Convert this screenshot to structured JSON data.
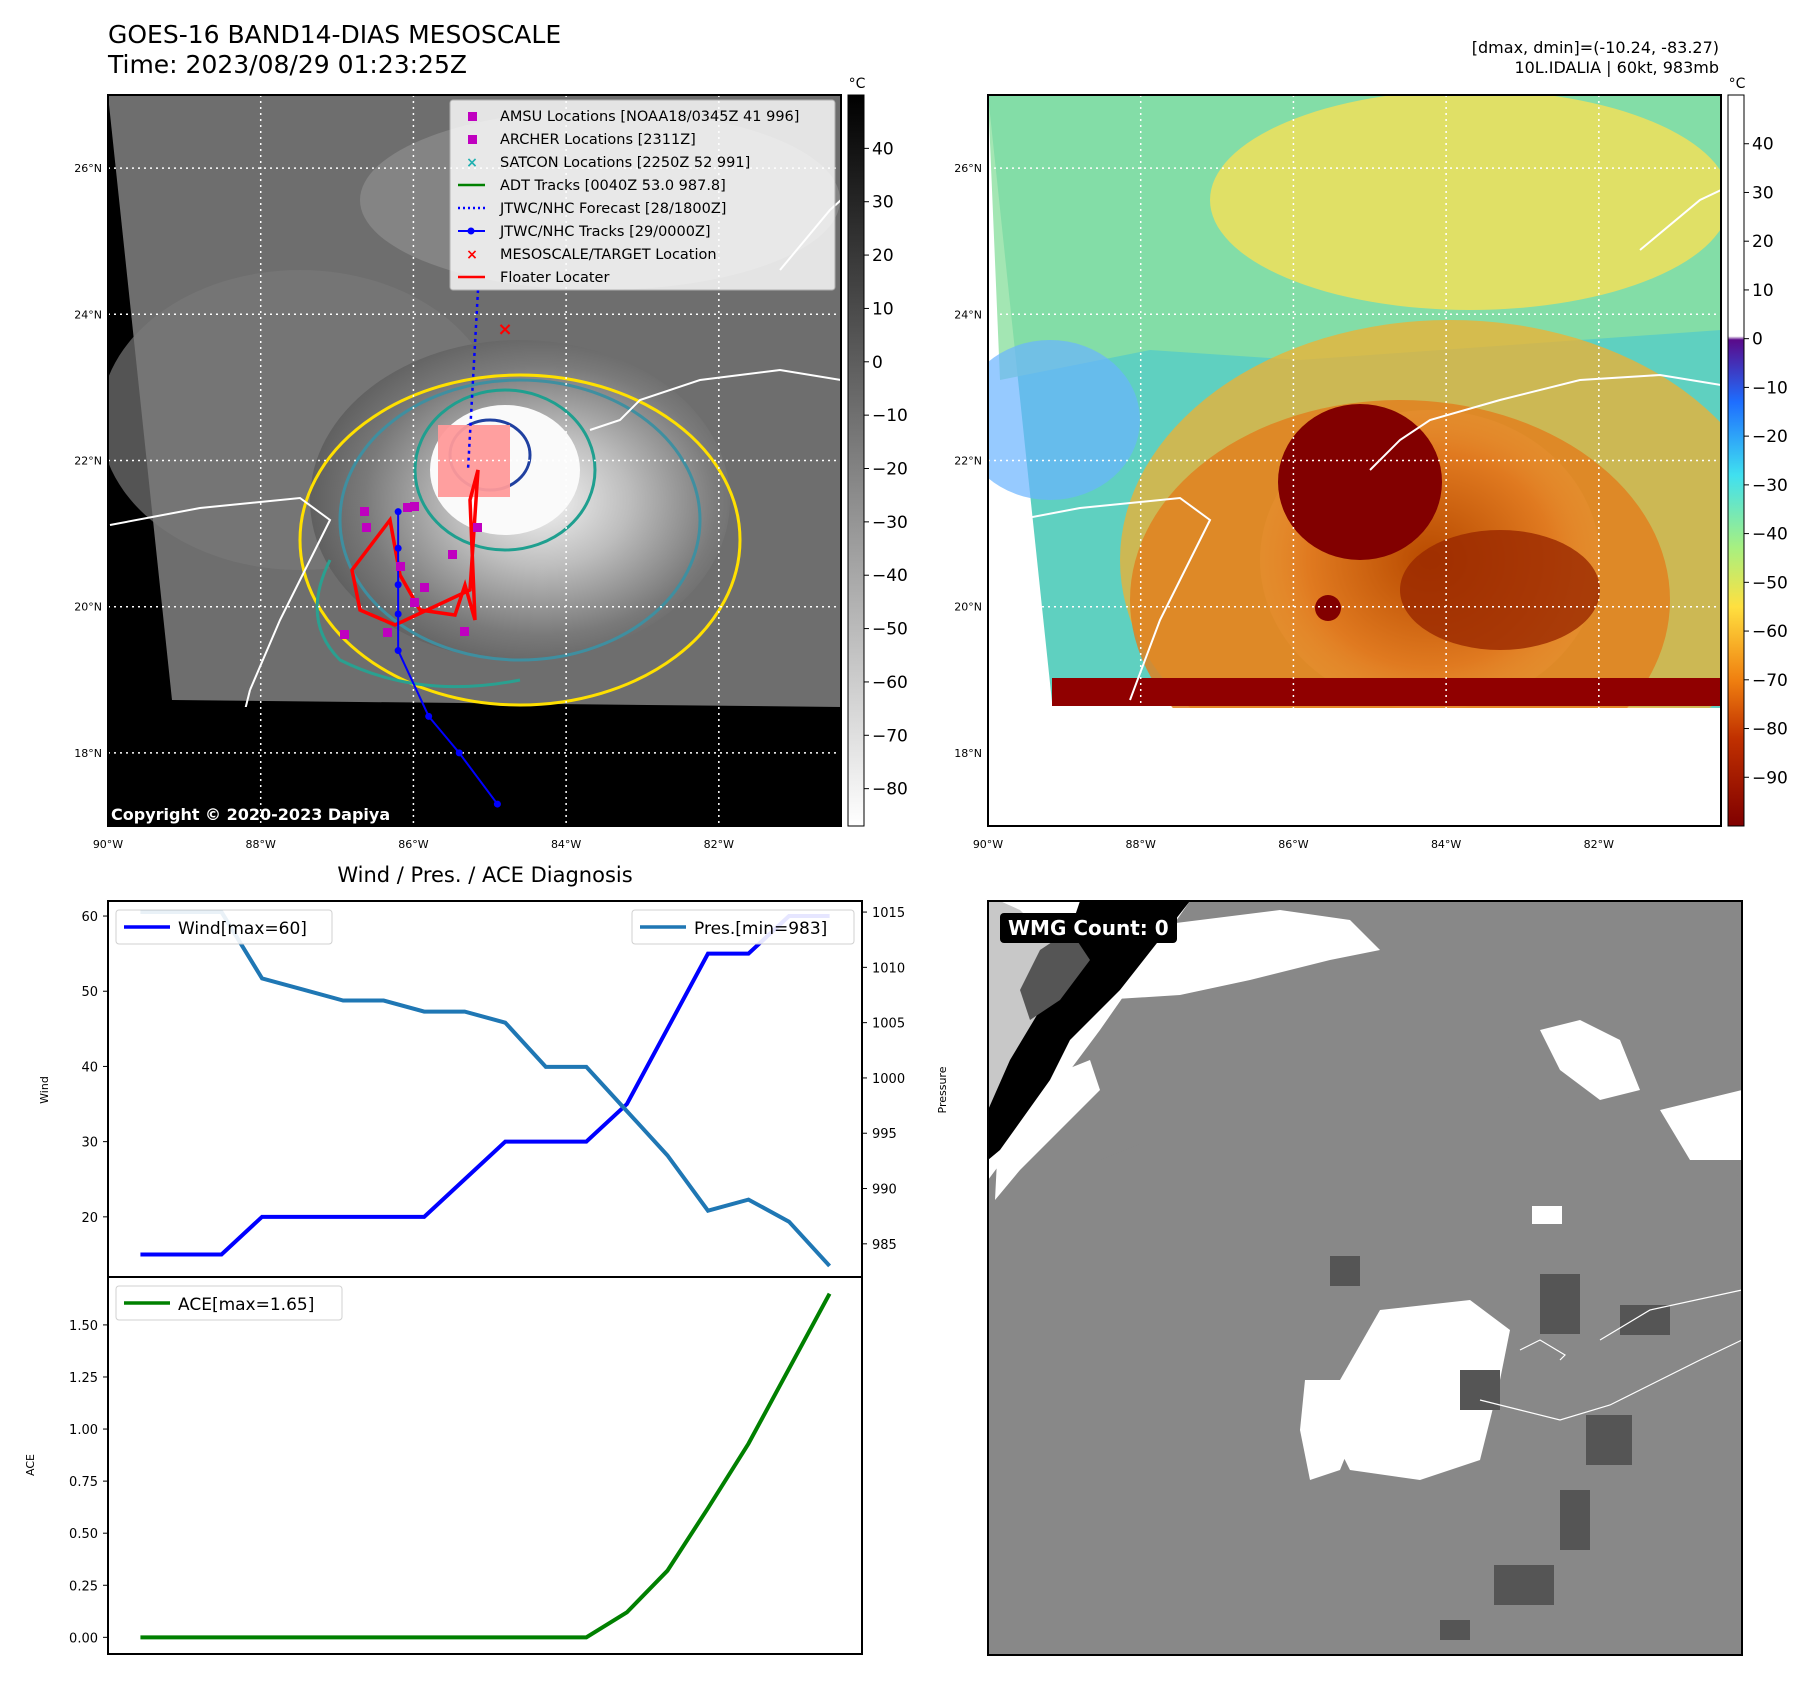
{
  "header": {
    "title_line1": "GOES-16 BAND14-DIAS MESOSCALE",
    "title_line2": "Time: 2023/08/29 01:23:25Z",
    "dmax_dmin": "[dmax, dmin]=(-10.24, -83.27)",
    "storm": "10L.IDALIA | 60kt, 983mb"
  },
  "maps": {
    "lat_labels": [
      "26°N",
      "24°N",
      "22°N",
      "20°N",
      "18°N"
    ],
    "lon_labels": [
      "90°W",
      "88°W",
      "86°W",
      "84°W",
      "82°W"
    ],
    "lat_values": [
      26,
      24,
      22,
      20,
      18
    ],
    "lon_values": [
      -90,
      -88,
      -86,
      -84,
      -82
    ],
    "copyright": "Copyright © 2020-2023 Dapiya",
    "colorbar_unit": "°C",
    "left_colorbar_ticks": [
      "40",
      "30",
      "20",
      "10",
      "0",
      "−10",
      "−20",
      "−30",
      "−40",
      "−50",
      "−60",
      "−70",
      "−80"
    ],
    "left_colorbar_values": [
      40,
      30,
      20,
      10,
      0,
      -10,
      -20,
      -30,
      -40,
      -50,
      -60,
      -70,
      -80
    ],
    "right_colorbar_ticks": [
      "40",
      "30",
      "20",
      "10",
      "0",
      "−10",
      "−20",
      "−30",
      "−40",
      "−50",
      "−60",
      "−70",
      "−80",
      "−90"
    ],
    "right_colorbar_values": [
      40,
      30,
      20,
      10,
      0,
      -10,
      -20,
      -30,
      -40,
      -50,
      -60,
      -70,
      -80,
      -90
    ],
    "legend": [
      "AMSU Locations [NOAA18/0345Z 41 996]",
      "ARCHER Locations [2311Z]",
      "SATCON Locations [2250Z 52 991]",
      "ADT Tracks [0040Z 53.0 987.8]",
      "JTWC/NHC Forecast [28/1800Z]",
      "JTWC/NHC Tracks [29/0000Z]",
      "MESOSCALE/TARGET Location",
      "Floater Locater"
    ],
    "colors": {
      "amsu": "#c000c0",
      "satcon": "#20b0b0",
      "adt": "#008000",
      "forecast": "#0000ff",
      "track": "#0000ff",
      "target": "#ff0000",
      "floater": "#ff0000"
    },
    "track_points": [
      {
        "lon": -86.2,
        "lat": 21.3
      },
      {
        "lon": -86.2,
        "lat": 20.8
      },
      {
        "lon": -86.2,
        "lat": 20.3
      },
      {
        "lon": -86.2,
        "lat": 19.9
      },
      {
        "lon": -86.2,
        "lat": 19.4
      },
      {
        "lon": -85.8,
        "lat": 18.5
      },
      {
        "lon": -85.4,
        "lat": 18.0
      },
      {
        "lon": -84.9,
        "lat": 17.3
      }
    ],
    "target_location": {
      "lon": -84.8,
      "lat": 23.8
    }
  },
  "chart_data": [
    {
      "type": "line",
      "title": "Wind / Pres. / ACE Diagnosis",
      "ylabel": "Wind",
      "ylabel_right": "Pressure",
      "x": [
        0,
        1,
        2,
        3,
        4,
        5,
        6,
        7,
        8,
        9,
        10,
        11,
        12,
        13,
        14,
        15,
        16,
        17
      ],
      "series": [
        {
          "name": "Wind[max=60]",
          "axis": "left",
          "color": "#0000ff",
          "values": [
            15,
            15,
            15,
            20,
            20,
            20,
            20,
            20,
            25,
            30,
            30,
            30,
            35,
            45,
            55,
            55,
            60,
            60
          ]
        },
        {
          "name": "Pres.[min=983]",
          "axis": "right",
          "color": "#1f77b4",
          "values": [
            1015,
            1015,
            1015,
            1009,
            1008,
            1007,
            1007,
            1006,
            1006,
            1005,
            1001,
            1001,
            997,
            993,
            988,
            989,
            987,
            983
          ]
        }
      ],
      "ylim": [
        15,
        62
      ],
      "ylim_right": [
        982,
        1016
      ],
      "yticks": [
        "60",
        "50",
        "40",
        "30",
        "20"
      ],
      "ytick_values": [
        60,
        50,
        40,
        30,
        20
      ],
      "yticks_right": [
        "1015",
        "1010",
        "1005",
        "1000",
        "995",
        "990",
        "985"
      ],
      "ytick_right_values": [
        1015,
        1010,
        1005,
        1000,
        995,
        990,
        985
      ]
    },
    {
      "type": "line",
      "ylabel": "ACE",
      "x": [
        0,
        1,
        2,
        3,
        4,
        5,
        6,
        7,
        8,
        9,
        10,
        11,
        12,
        13,
        14,
        15,
        16,
        17
      ],
      "series": [
        {
          "name": "ACE[max=1.65]",
          "color": "#008000",
          "values": [
            0,
            0,
            0,
            0,
            0,
            0,
            0,
            0,
            0,
            0,
            0,
            0,
            0.12,
            0.32,
            0.62,
            0.93,
            1.29,
            1.65
          ]
        }
      ],
      "ylim": [
        -0.08,
        1.73
      ],
      "yticks": [
        "0.00",
        "0.25",
        "0.50",
        "0.75",
        "1.00",
        "1.25",
        "1.50"
      ],
      "ytick_values": [
        0,
        0.25,
        0.5,
        0.75,
        1.0,
        1.25,
        1.5
      ]
    }
  ],
  "wmg": {
    "count_label": "WMG Count: 0"
  }
}
